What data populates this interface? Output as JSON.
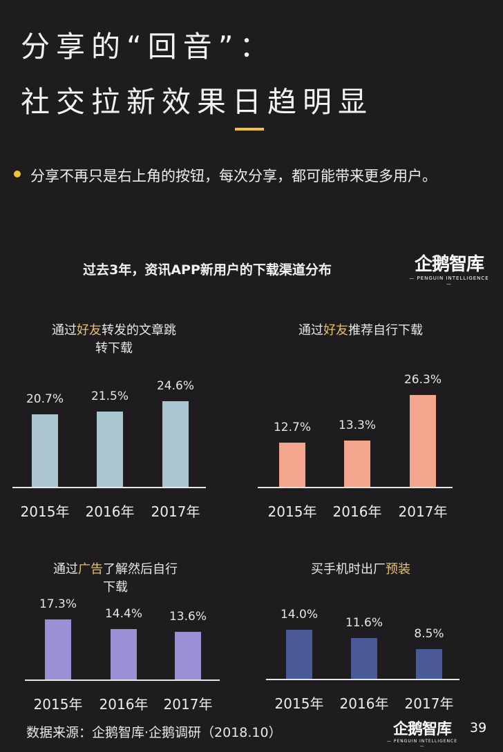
{
  "title_line1": "分享的“回音”：",
  "title_line2": "社交拉新效果日趋明显",
  "bullet": "分享不再只是右上角的按钮，每次分享，都可能带来更多用户。",
  "logo": {
    "name": "企鹅智库",
    "tagline": "— PENGUIN INTELLIGENCE —"
  },
  "source": "数据来源：企鹅智库·企鹅调研（2018.10）",
  "page_number": "39",
  "colors": {
    "background": "#1e1c1f",
    "accent": "#f1c232",
    "highlight": "#e5c36a"
  },
  "chart_data": [
    {
      "type": "bar",
      "title": "过去3年，资讯APP新用户的下载渠道分布",
      "panel_title": [
        "通过",
        "好友",
        "转发的文章跳转下载"
      ],
      "categories": [
        "2015年",
        "2016年",
        "2017年"
      ],
      "values": [
        20.7,
        21.5,
        24.6
      ],
      "labels": [
        "20.7%",
        "21.5%",
        "24.6%"
      ],
      "unit": "%",
      "color": "#a9c6d1"
    },
    {
      "type": "bar",
      "panel_title": [
        "通过",
        "好友",
        "推荐自行下载"
      ],
      "categories": [
        "2015年",
        "2016年",
        "2017年"
      ],
      "values": [
        12.7,
        13.3,
        26.3
      ],
      "labels": [
        "12.7%",
        "13.3%",
        "26.3%"
      ],
      "unit": "%",
      "color": "#f2a68e"
    },
    {
      "type": "bar",
      "panel_title": [
        "通过",
        "广告",
        "了解然后自行下载"
      ],
      "categories": [
        "2015年",
        "2016年",
        "2017年"
      ],
      "values": [
        17.3,
        14.4,
        13.6
      ],
      "labels": [
        "17.3%",
        "14.4%",
        "13.6%"
      ],
      "unit": "%",
      "color": "#9b8fd6"
    },
    {
      "type": "bar",
      "panel_title": [
        "买手机时出厂",
        "预装",
        ""
      ],
      "categories": [
        "2015年",
        "2016年",
        "2017年"
      ],
      "values": [
        14.0,
        11.6,
        8.5
      ],
      "labels": [
        "14.0%",
        "11.6%",
        "8.5%"
      ],
      "unit": "%",
      "color": "#4a5a94"
    }
  ]
}
